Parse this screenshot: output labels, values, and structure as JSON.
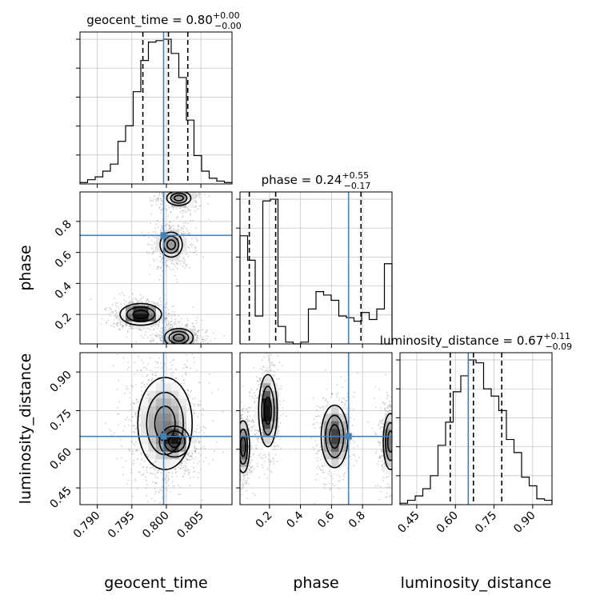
{
  "chart_data": {
    "type": "corner",
    "parameters": [
      "geocent_time",
      "phase",
      "luminosity_distance"
    ],
    "truths": {
      "geocent_time": 0.7996,
      "phase": 0.71,
      "luminosity_distance": 0.65
    },
    "titles": [
      {
        "param": "geocent_time",
        "text": "geocent_time = 0.80",
        "sup": "+0.00",
        "sub": "−0.00"
      },
      {
        "param": "phase",
        "text": "phase = 0.24",
        "sup": "+0.55",
        "sub": "−0.17"
      },
      {
        "param": "luminosity_distance",
        "text": "luminosity_distance = 0.67",
        "sup": "+0.11",
        "sub": "−0.09"
      }
    ],
    "axes": {
      "geocent_time": {
        "range": [
          0.7875,
          0.8095
        ],
        "ticks": [
          0.79,
          0.795,
          0.8,
          0.805
        ],
        "tick_labels": [
          "0.790",
          "0.795",
          "0.800",
          "0.805"
        ],
        "label": "geocent_time"
      },
      "phase": {
        "range": [
          0.01,
          0.99
        ],
        "ticks": [
          0.2,
          0.4,
          0.6,
          0.8
        ],
        "tick_labels": [
          "0.2",
          "0.4",
          "0.6",
          "0.8"
        ],
        "label": "phase"
      },
      "luminosity_distance": {
        "range": [
          0.385,
          0.975
        ],
        "ticks": [
          0.45,
          0.6,
          0.75,
          0.9
        ],
        "tick_labels": [
          "0.45",
          "0.60",
          "0.75",
          "0.90"
        ],
        "label": "luminosity_distance"
      }
    },
    "histograms": {
      "geocent_time": {
        "bins": [
          0.7875,
          0.7886,
          0.7897,
          0.7908,
          0.7919,
          0.793,
          0.7941,
          0.7952,
          0.7963,
          0.7974,
          0.7985,
          0.7996,
          0.8007,
          0.8018,
          0.8029,
          0.804,
          0.8051,
          0.8062,
          0.8073,
          0.8084,
          0.8095
        ],
        "counts": [
          1,
          3,
          5,
          9,
          14,
          30,
          41,
          65,
          87,
          100,
          101,
          102,
          92,
          75,
          45,
          20,
          9,
          4,
          2,
          1
        ],
        "quantiles": [
          0.7966,
          0.8003,
          0.8031
        ]
      },
      "phase": {
        "bins": [
          0.01,
          0.059,
          0.108,
          0.157,
          0.206,
          0.255,
          0.304,
          0.353,
          0.402,
          0.451,
          0.5,
          0.549,
          0.598,
          0.647,
          0.696,
          0.745,
          0.794,
          0.843,
          0.892,
          0.941,
          0.99
        ],
        "counts": [
          62,
          48,
          16,
          82,
          83,
          10,
          1,
          0,
          1,
          20,
          30,
          28,
          25,
          16,
          15,
          13,
          18,
          14,
          20,
          46
        ],
        "quantiles": [
          0.07,
          0.24,
          0.79
        ]
      },
      "luminosity_distance": {
        "bins": [
          0.385,
          0.4145,
          0.444,
          0.4735,
          0.503,
          0.5325,
          0.562,
          0.5915,
          0.621,
          0.6505,
          0.68,
          0.7095,
          0.739,
          0.7685,
          0.798,
          0.8275,
          0.857,
          0.8865,
          0.916,
          0.9455,
          0.975
        ],
        "counts": [
          1,
          3,
          6,
          11,
          20,
          41,
          57,
          78,
          89,
          100,
          98,
          80,
          75,
          65,
          45,
          36,
          19,
          13,
          4,
          3
        ],
        "quantiles": [
          0.58,
          0.67,
          0.78
        ]
      }
    },
    "density_2d": [
      {
        "x": "geocent_time",
        "y": "phase",
        "modes": [
          {
            "x": 0.7963,
            "y": 0.2,
            "sx": 0.0015,
            "sy": 0.035,
            "w": 1.0
          },
          {
            "x": 0.8018,
            "y": 0.05,
            "sx": 0.0014,
            "sy": 0.04,
            "w": 0.55
          },
          {
            "x": 0.8007,
            "y": 0.65,
            "sx": 0.0012,
            "sy": 0.06,
            "w": 0.45
          },
          {
            "x": 0.8018,
            "y": 0.95,
            "sx": 0.0013,
            "sy": 0.035,
            "w": 0.45
          }
        ]
      },
      {
        "x": "geocent_time",
        "y": "luminosity_distance",
        "modes": [
          {
            "x": 0.7998,
            "y": 0.7,
            "sx": 0.0022,
            "sy": 0.1,
            "w": 0.8
          },
          {
            "x": 0.8012,
            "y": 0.63,
            "sx": 0.0011,
            "sy": 0.03,
            "w": 1.0
          }
        ]
      },
      {
        "x": "phase",
        "y": "luminosity_distance",
        "modes": [
          {
            "x": 0.19,
            "y": 0.75,
            "sx": 0.03,
            "sy": 0.07,
            "w": 1.0
          },
          {
            "x": 0.03,
            "y": 0.61,
            "sx": 0.025,
            "sy": 0.06,
            "w": 0.7
          },
          {
            "x": 0.62,
            "y": 0.65,
            "sx": 0.05,
            "sy": 0.07,
            "w": 0.75
          },
          {
            "x": 0.98,
            "y": 0.63,
            "sx": 0.03,
            "sy": 0.07,
            "w": 0.6
          }
        ]
      }
    ],
    "grid": true,
    "colors": {
      "truth": "#4682b4",
      "hist": "#000000",
      "quantile": "#000000",
      "grid": "#c8c8c8",
      "points": "#9a9a9a"
    }
  }
}
